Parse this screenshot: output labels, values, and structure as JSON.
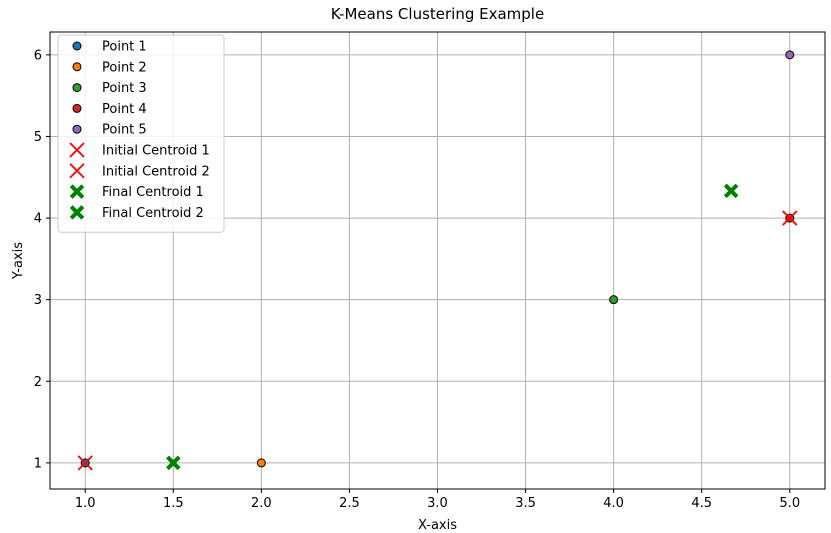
{
  "chart_data": {
    "type": "scatter",
    "title": "K-Means Clustering Example",
    "xlabel": "X-axis",
    "ylabel": "Y-axis",
    "xlim": [
      0.8,
      5.2
    ],
    "ylim": [
      0.68,
      6.28
    ],
    "xticks": [
      "1.0",
      "1.5",
      "2.0",
      "2.5",
      "3.0",
      "3.5",
      "4.0",
      "4.5",
      "5.0"
    ],
    "yticks": [
      "1",
      "2",
      "3",
      "4",
      "5",
      "6"
    ],
    "grid": true,
    "legend_position": "top-left",
    "series": [
      {
        "name": "Point 1",
        "marker": "circle",
        "color": "#1f77b4",
        "points": [
          {
            "x": 1.0,
            "y": 1.0
          }
        ]
      },
      {
        "name": "Point 2",
        "marker": "circle",
        "color": "#ff7f0e",
        "points": [
          {
            "x": 2.0,
            "y": 1.0
          }
        ]
      },
      {
        "name": "Point 3",
        "marker": "circle",
        "color": "#2ca02c",
        "points": [
          {
            "x": 4.0,
            "y": 3.0
          }
        ]
      },
      {
        "name": "Point 4",
        "marker": "circle",
        "color": "#d62728",
        "points": [
          {
            "x": 5.0,
            "y": 4.0
          }
        ]
      },
      {
        "name": "Point 5",
        "marker": "circle",
        "color": "#9467bd",
        "points": [
          {
            "x": 5.0,
            "y": 6.0
          }
        ]
      },
      {
        "name": "Initial Centroid 1",
        "marker": "x",
        "color": "#ff0000",
        "points": [
          {
            "x": 1.0,
            "y": 1.0
          }
        ]
      },
      {
        "name": "Initial Centroid 2",
        "marker": "x",
        "color": "#ff0000",
        "points": [
          {
            "x": 5.0,
            "y": 4.0
          }
        ]
      },
      {
        "name": "Final Centroid 1",
        "marker": "X",
        "color": "#008000",
        "points": [
          {
            "x": 1.5,
            "y": 1.0
          }
        ]
      },
      {
        "name": "Final Centroid 2",
        "marker": "X",
        "color": "#008000",
        "points": [
          {
            "x": 4.667,
            "y": 4.333
          }
        ]
      }
    ]
  }
}
